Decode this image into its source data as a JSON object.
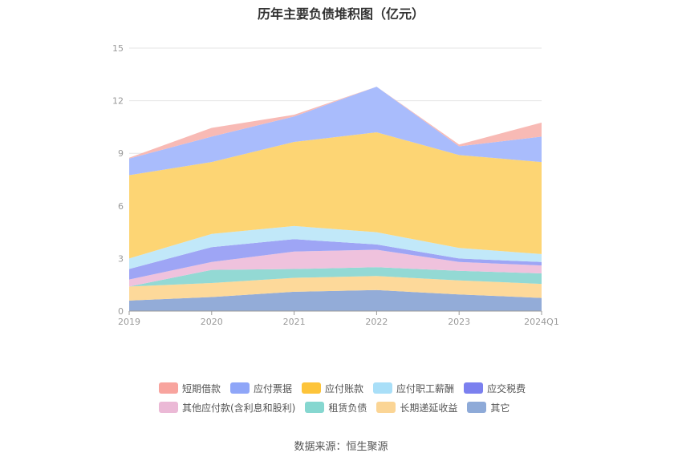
{
  "chart_data": {
    "type": "area",
    "title": "历年主要负债堆积图（亿元）",
    "categories": [
      "2019",
      "2020",
      "2021",
      "2022",
      "2023",
      "2024Q1"
    ],
    "ylim": [
      0,
      15
    ],
    "yticks": [
      0,
      3,
      6,
      9,
      12,
      15
    ],
    "grid": true,
    "stacked": true,
    "legend_position": "bottom",
    "series": [
      {
        "name": "其它",
        "color": "#93acd8",
        "values": [
          0.6,
          0.8,
          1.1,
          1.2,
          0.95,
          0.75
        ]
      },
      {
        "name": "长期递延收益",
        "color": "#fdd99a",
        "values": [
          0.8,
          0.8,
          0.8,
          0.8,
          0.8,
          0.8
        ]
      },
      {
        "name": "租赁负债",
        "color": "#93d9d4",
        "values": [
          0.0,
          0.75,
          0.5,
          0.5,
          0.55,
          0.6
        ]
      },
      {
        "name": "其他应付款(含利息和股利)",
        "color": "#efc2dd",
        "values": [
          0.4,
          0.45,
          1.0,
          1.0,
          0.5,
          0.45
        ]
      },
      {
        "name": "应交税费",
        "color": "#9ea5f5",
        "values": [
          0.6,
          0.85,
          0.7,
          0.3,
          0.2,
          0.2
        ]
      },
      {
        "name": "应付职工薪酬",
        "color": "#c1e8f9",
        "values": [
          0.6,
          0.75,
          0.75,
          0.7,
          0.6,
          0.45
        ]
      },
      {
        "name": "应付账款",
        "color": "#fdd574",
        "values": [
          4.75,
          4.1,
          4.8,
          5.7,
          5.3,
          5.25
        ]
      },
      {
        "name": "应付票据",
        "color": "#a9bcfc",
        "values": [
          0.95,
          1.45,
          1.45,
          2.6,
          0.5,
          1.45
        ]
      },
      {
        "name": "短期借款",
        "color": "#f8bab5",
        "values": [
          0.05,
          0.5,
          0.1,
          0.0,
          0.1,
          0.8
        ]
      }
    ]
  },
  "legend": {
    "items": [
      {
        "label": "短期借款",
        "color": "#f8a49e"
      },
      {
        "label": "应付票据",
        "color": "#8fa6f8"
      },
      {
        "label": "应付账款",
        "color": "#fdc43a"
      },
      {
        "label": "应付职工薪酬",
        "color": "#a9dff8"
      },
      {
        "label": "应交税费",
        "color": "#7b80ef"
      },
      {
        "label": "其他应付款(含利息和股利)",
        "color": "#ebb9d6"
      },
      {
        "label": "租赁负债",
        "color": "#86d7d0"
      },
      {
        "label": "长期递延收益",
        "color": "#fbd595"
      },
      {
        "label": "其它",
        "color": "#8eaad8"
      }
    ]
  },
  "source": "数据来源：恒生聚源"
}
